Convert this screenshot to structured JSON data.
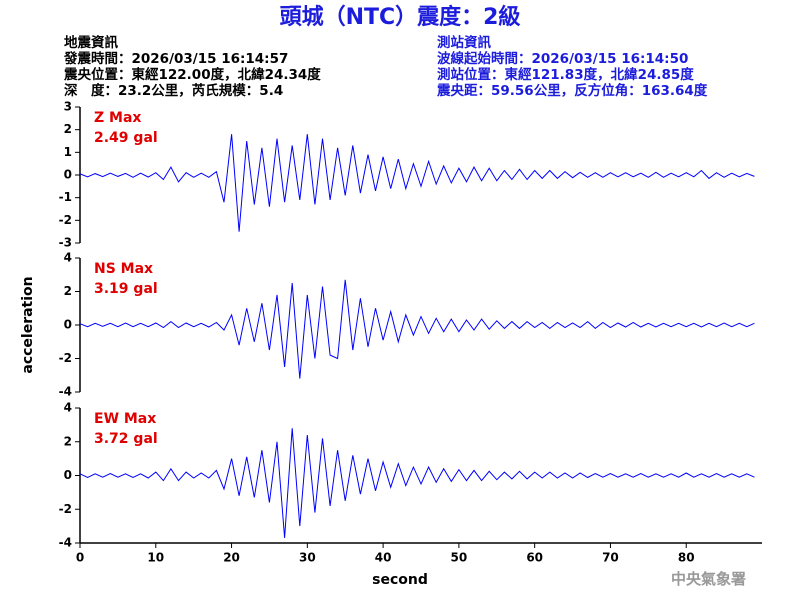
{
  "header": {
    "title": "頭城（NTC）震度：2級",
    "left": [
      "地震資訊",
      "發震時間：2026/03/15 16:14:57",
      "震央位置：東經122.00度，北緯24.34度",
      "深　度：23.2公里，芮氏規模：5.4"
    ],
    "right": [
      "測站資訊",
      "波線起始時間：2026/03/15 16:14:50",
      "測站位置：東經121.83度，北緯24.85度",
      "震央距：59.56公里，反方位角：163.64度"
    ]
  },
  "ylabel": "acceleration",
  "footer": "中央氣象署",
  "chart_data": [
    {
      "type": "line",
      "label": "Z Max",
      "max_label": "2.49 gal",
      "color": "#0000ff",
      "label_color": "#e00000",
      "xlim": [
        0,
        90
      ],
      "ylim": [
        -3,
        3
      ],
      "yticks": [
        -3,
        -2,
        -1,
        0,
        1,
        2,
        3
      ],
      "x": [
        0,
        1,
        2,
        3,
        4,
        5,
        6,
        7,
        8,
        9,
        10,
        11,
        12,
        13,
        14,
        15,
        16,
        17,
        18,
        19,
        20,
        21,
        22,
        23,
        24,
        25,
        26,
        27,
        28,
        29,
        30,
        31,
        32,
        33,
        34,
        35,
        36,
        37,
        38,
        39,
        40,
        41,
        42,
        43,
        44,
        45,
        46,
        47,
        48,
        49,
        50,
        51,
        52,
        53,
        54,
        55,
        56,
        57,
        58,
        59,
        60,
        61,
        62,
        63,
        64,
        65,
        66,
        67,
        68,
        69,
        70,
        71,
        72,
        73,
        74,
        75,
        76,
        77,
        78,
        79,
        80,
        81,
        82,
        83,
        84,
        85,
        86,
        87,
        88,
        89
      ],
      "values": [
        0.05,
        -0.08,
        0.06,
        -0.07,
        0.08,
        -0.06,
        0.07,
        -0.1,
        0.08,
        -0.09,
        0.1,
        -0.2,
        0.35,
        -0.3,
        0.1,
        -0.1,
        0.08,
        -0.1,
        0.15,
        -1.2,
        1.8,
        -2.5,
        1.5,
        -1.3,
        1.2,
        -1.4,
        1.6,
        -1.2,
        1.3,
        -1.1,
        1.8,
        -1.3,
        1.6,
        -1.1,
        1.2,
        -0.9,
        1.3,
        -0.8,
        0.9,
        -0.7,
        0.8,
        -0.6,
        0.7,
        -0.6,
        0.5,
        -0.5,
        0.6,
        -0.4,
        0.4,
        -0.35,
        0.3,
        -0.3,
        0.35,
        -0.25,
        0.3,
        -0.25,
        0.2,
        -0.2,
        0.25,
        -0.2,
        0.2,
        -0.15,
        0.2,
        -0.15,
        0.15,
        -0.12,
        0.12,
        -0.1,
        0.1,
        -0.1,
        0.1,
        -0.08,
        0.1,
        -0.08,
        0.08,
        -0.1,
        0.12,
        -0.1,
        0.08,
        -0.08,
        0.1,
        -0.08,
        0.2,
        -0.15,
        0.1,
        -0.1,
        0.08,
        -0.08,
        0.07,
        -0.06
      ]
    },
    {
      "type": "line",
      "label": "NS Max",
      "max_label": "3.19 gal",
      "color": "#0000ff",
      "label_color": "#e00000",
      "xlim": [
        0,
        90
      ],
      "ylim": [
        -4,
        4
      ],
      "yticks": [
        -4,
        -2,
        0,
        2,
        4
      ],
      "x": [
        0,
        1,
        2,
        3,
        4,
        5,
        6,
        7,
        8,
        9,
        10,
        11,
        12,
        13,
        14,
        15,
        16,
        17,
        18,
        19,
        20,
        21,
        22,
        23,
        24,
        25,
        26,
        27,
        28,
        29,
        30,
        31,
        32,
        33,
        34,
        35,
        36,
        37,
        38,
        39,
        40,
        41,
        42,
        43,
        44,
        45,
        46,
        47,
        48,
        49,
        50,
        51,
        52,
        53,
        54,
        55,
        56,
        57,
        58,
        59,
        60,
        61,
        62,
        63,
        64,
        65,
        66,
        67,
        68,
        69,
        70,
        71,
        72,
        73,
        74,
        75,
        76,
        77,
        78,
        79,
        80,
        81,
        82,
        83,
        84,
        85,
        86,
        87,
        88,
        89
      ],
      "values": [
        0.08,
        -0.1,
        0.1,
        -0.08,
        0.1,
        -0.1,
        0.12,
        -0.1,
        0.1,
        -0.1,
        0.12,
        -0.15,
        0.2,
        -0.15,
        0.12,
        -0.1,
        0.1,
        -0.12,
        0.15,
        -0.3,
        0.6,
        -1.2,
        1.0,
        -1.0,
        1.3,
        -1.5,
        1.8,
        -2.5,
        2.5,
        -3.2,
        1.8,
        -2.0,
        2.3,
        -1.8,
        -2.0,
        2.7,
        -1.5,
        1.6,
        -1.3,
        1.0,
        -0.9,
        0.8,
        -1.0,
        0.6,
        -0.6,
        0.5,
        -0.5,
        0.4,
        -0.4,
        0.35,
        -0.4,
        0.3,
        -0.3,
        0.35,
        -0.25,
        0.25,
        -0.2,
        0.2,
        -0.2,
        0.2,
        -0.15,
        0.15,
        -0.2,
        0.15,
        -0.15,
        0.12,
        -0.15,
        0.2,
        -0.2,
        0.15,
        -0.15,
        0.12,
        -0.12,
        0.15,
        -0.12,
        0.1,
        -0.12,
        0.1,
        -0.1,
        0.1,
        -0.1,
        0.1,
        -0.12,
        0.1,
        -0.1,
        0.12,
        -0.1,
        0.1,
        -0.1,
        0.1
      ]
    },
    {
      "type": "line",
      "label": "EW Max",
      "max_label": "3.72 gal",
      "color": "#0000ff",
      "label_color": "#e00000",
      "xlim": [
        0,
        90
      ],
      "ylim": [
        -4,
        4
      ],
      "yticks": [
        -4,
        -2,
        0,
        2,
        4
      ],
      "xticks": [
        0,
        10,
        20,
        30,
        40,
        50,
        60,
        70,
        80
      ],
      "xlabel": "second",
      "x": [
        0,
        1,
        2,
        3,
        4,
        5,
        6,
        7,
        8,
        9,
        10,
        11,
        12,
        13,
        14,
        15,
        16,
        17,
        18,
        19,
        20,
        21,
        22,
        23,
        24,
        25,
        26,
        27,
        28,
        29,
        30,
        31,
        32,
        33,
        34,
        35,
        36,
        37,
        38,
        39,
        40,
        41,
        42,
        43,
        44,
        45,
        46,
        47,
        48,
        49,
        50,
        51,
        52,
        53,
        54,
        55,
        56,
        57,
        58,
        59,
        60,
        61,
        62,
        63,
        64,
        65,
        66,
        67,
        68,
        69,
        70,
        71,
        72,
        73,
        74,
        75,
        76,
        77,
        78,
        79,
        80,
        81,
        82,
        83,
        84,
        85,
        86,
        87,
        88,
        89
      ],
      "values": [
        0.1,
        -0.12,
        0.1,
        -0.1,
        0.12,
        -0.1,
        0.1,
        -0.12,
        0.1,
        -0.15,
        0.2,
        -0.3,
        0.4,
        -0.3,
        0.2,
        -0.15,
        0.15,
        -0.15,
        0.3,
        -0.8,
        1.0,
        -1.2,
        1.1,
        -1.3,
        1.5,
        -1.6,
        2.0,
        -3.7,
        2.8,
        -3.0,
        2.4,
        -2.2,
        2.2,
        -1.8,
        1.5,
        -1.5,
        1.2,
        -1.1,
        1.0,
        -0.9,
        0.8,
        -0.7,
        0.7,
        -0.6,
        0.5,
        -0.5,
        0.5,
        -0.4,
        0.4,
        -0.35,
        0.35,
        -0.3,
        0.3,
        -0.3,
        0.25,
        -0.25,
        0.2,
        -0.2,
        0.25,
        -0.2,
        0.2,
        -0.15,
        0.2,
        -0.15,
        0.15,
        -0.15,
        0.15,
        -0.12,
        0.12,
        -0.1,
        0.12,
        -0.1,
        0.1,
        -0.1,
        0.12,
        -0.1,
        0.1,
        -0.1,
        0.1,
        -0.1,
        0.15,
        -0.1,
        0.1,
        -0.1,
        0.12,
        -0.1,
        0.1,
        -0.1,
        0.1,
        -0.1
      ]
    }
  ]
}
